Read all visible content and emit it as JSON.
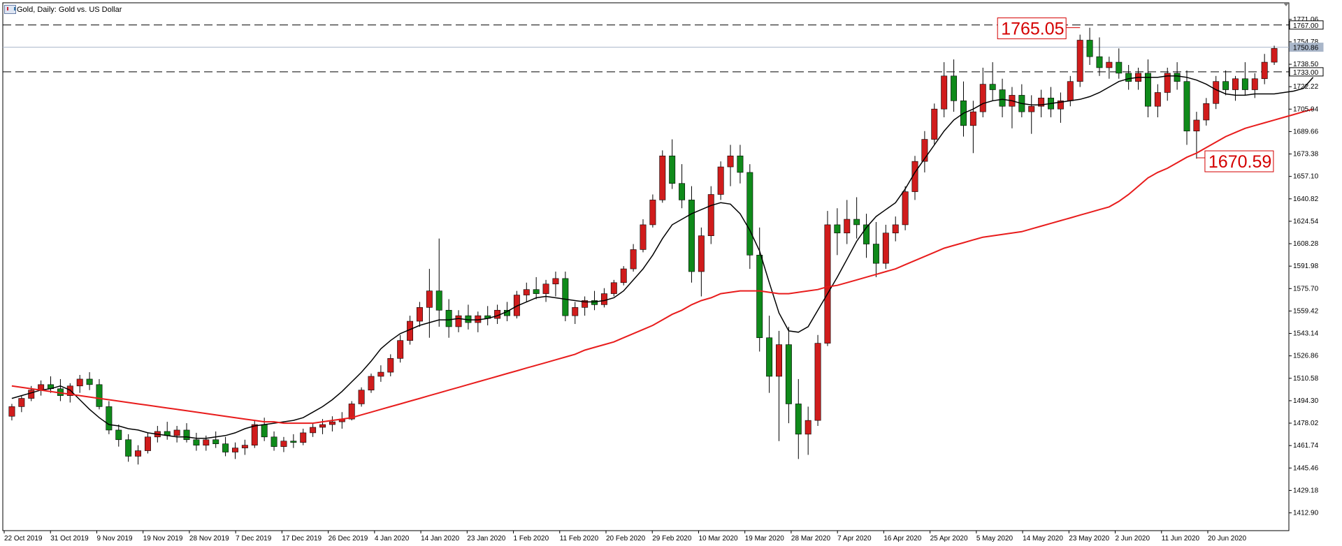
{
  "header": {
    "title": "Gold, Daily:  Gold vs. US Dollar"
  },
  "colors": {
    "bull_candle": "#d01c1c",
    "bear_candle": "#0f8a1a",
    "ma_fast": "#000000",
    "ma_slow": "#e81c1c",
    "level_line": "#000000",
    "price_line": "#a9b6c9",
    "callout_text": "#d40000"
  },
  "chart_data": {
    "type": "candlestick",
    "timeframe": "Daily",
    "symbol": "Gold",
    "ylim": [
      1400.0,
      1775.0
    ],
    "y_ticks": [
      "1771.06",
      "1754.78",
      "1738.50",
      "1722.22",
      "1705.94",
      "1689.66",
      "1673.38",
      "1657.10",
      "1640.82",
      "1624.54",
      "1608.28",
      "1591.98",
      "1575.70",
      "1559.42",
      "1543.14",
      "1526.86",
      "1510.58",
      "1494.30",
      "1478.02",
      "1461.74",
      "1445.46",
      "1429.18",
      "1412.90"
    ],
    "x_ticks": [
      "22 Oct 2019",
      "31 Oct 2019",
      "9 Nov 2019",
      "19 Nov 2019",
      "28 Nov 2019",
      "7 Dec 2019",
      "17 Dec 2019",
      "26 Dec 2019",
      "4 Jan 2020",
      "14 Jan 2020",
      "23 Jan 2020",
      "1 Feb 2020",
      "11 Feb 2020",
      "20 Feb 2020",
      "29 Feb 2020",
      "10 Mar 2020",
      "19 Mar 2020",
      "28 Mar 2020",
      "7 Apr 2020",
      "16 Apr 2020",
      "25 Apr 2020",
      "5 May 2020",
      "14 May 2020",
      "23 May 2020",
      "2 Jun 2020",
      "11 Jun 2020",
      "20 Jun 2020"
    ],
    "levels": [
      {
        "price": 1767.0,
        "label": "1767.00",
        "style": "dashed"
      },
      {
        "price": 1733.0,
        "label": "1733.00",
        "style": "dashed"
      },
      {
        "price": 1750.86,
        "label": "1750.86",
        "style": "solid"
      }
    ],
    "annotations": [
      {
        "text": "1765.05",
        "price": 1765.05
      },
      {
        "text": "1670.59",
        "price": 1670.59
      }
    ],
    "series": [
      {
        "name": "",
        "kind": "sma_fast",
        "values": [
          1496,
          1498,
          1500,
          1502,
          1503,
          1505,
          1502,
          1495,
          1488,
          1482,
          1477,
          1476,
          1474,
          1473,
          1471,
          1470,
          1469,
          1468,
          1468,
          1467,
          1467,
          1468,
          1469,
          1471,
          1474,
          1476,
          1477,
          1478,
          1479,
          1480,
          1482,
          1486,
          1490,
          1495,
          1501,
          1508,
          1515,
          1523,
          1532,
          1538,
          1543,
          1546,
          1549,
          1551,
          1553,
          1553,
          1554,
          1553,
          1553,
          1554,
          1556,
          1559,
          1563,
          1566,
          1569,
          1570,
          1569,
          1568,
          1567,
          1566,
          1566,
          1567,
          1569,
          1574,
          1582,
          1590,
          1600,
          1612,
          1622,
          1626,
          1630,
          1633,
          1636,
          1638,
          1637,
          1630,
          1618,
          1603,
          1580,
          1558,
          1545,
          1544,
          1548,
          1560,
          1572,
          1584,
          1597,
          1610,
          1620,
          1628,
          1633,
          1638,
          1648,
          1660,
          1670,
          1680,
          1690,
          1698,
          1703,
          1706,
          1710,
          1712,
          1713,
          1712,
          1710,
          1709,
          1709,
          1710,
          1711,
          1712,
          1713,
          1715,
          1718,
          1722,
          1726,
          1728,
          1729,
          1729,
          1729,
          1730,
          1730,
          1729,
          1727,
          1724,
          1720,
          1717,
          1716,
          1716,
          1717,
          1717,
          1717,
          1718,
          1719,
          1721,
          1729
        ]
      },
      {
        "name": "",
        "kind": "sma_slow",
        "values": [
          1505,
          1504,
          1503,
          1502,
          1501,
          1500,
          1499,
          1498,
          1497,
          1496,
          1495,
          1494,
          1493,
          1492,
          1491,
          1490,
          1489,
          1488,
          1487,
          1486,
          1485,
          1484,
          1483,
          1482,
          1481,
          1480,
          1479,
          1479,
          1478,
          1478,
          1478,
          1478,
          1479,
          1480,
          1481,
          1482,
          1484,
          1486,
          1488,
          1490,
          1492,
          1494,
          1496,
          1498,
          1500,
          1502,
          1504,
          1506,
          1508,
          1510,
          1512,
          1514,
          1516,
          1518,
          1520,
          1522,
          1524,
          1526,
          1528,
          1531,
          1533,
          1535,
          1537,
          1540,
          1543,
          1546,
          1549,
          1553,
          1557,
          1560,
          1564,
          1567,
          1569,
          1572,
          1573,
          1574,
          1574,
          1574,
          1573,
          1572,
          1572,
          1573,
          1574,
          1575,
          1577,
          1578,
          1580,
          1582,
          1584,
          1586,
          1588,
          1590,
          1593,
          1596,
          1599,
          1602,
          1605,
          1607,
          1609,
          1611,
          1613,
          1614,
          1615,
          1616,
          1617,
          1619,
          1621,
          1623,
          1625,
          1627,
          1629,
          1631,
          1633,
          1635,
          1639,
          1644,
          1650,
          1656,
          1660,
          1663,
          1667,
          1671,
          1674,
          1678,
          1682,
          1686,
          1689,
          1692,
          1694,
          1696,
          1698,
          1700,
          1702,
          1704,
          1706
        ]
      }
    ],
    "candles": [
      [
        1483,
        1492,
        1480,
        1490
      ],
      [
        1490,
        1498,
        1486,
        1496
      ],
      [
        1496,
        1505,
        1494,
        1502
      ],
      [
        1502,
        1509,
        1498,
        1506
      ],
      [
        1506,
        1512,
        1500,
        1503
      ],
      [
        1503,
        1510,
        1494,
        1498
      ],
      [
        1498,
        1507,
        1493,
        1505
      ],
      [
        1505,
        1513,
        1500,
        1510
      ],
      [
        1510,
        1515,
        1502,
        1506
      ],
      [
        1506,
        1510,
        1488,
        1490
      ],
      [
        1490,
        1494,
        1470,
        1473
      ],
      [
        1473,
        1477,
        1461,
        1466
      ],
      [
        1466,
        1470,
        1450,
        1454
      ],
      [
        1454,
        1462,
        1448,
        1458
      ],
      [
        1458,
        1471,
        1456,
        1468
      ],
      [
        1468,
        1476,
        1464,
        1472
      ],
      [
        1472,
        1479,
        1466,
        1469
      ],
      [
        1469,
        1476,
        1464,
        1473
      ],
      [
        1473,
        1478,
        1464,
        1466
      ],
      [
        1466,
        1471,
        1458,
        1462
      ],
      [
        1462,
        1469,
        1458,
        1466
      ],
      [
        1466,
        1472,
        1460,
        1463
      ],
      [
        1463,
        1468,
        1454,
        1457
      ],
      [
        1457,
        1464,
        1452,
        1460
      ],
      [
        1460,
        1466,
        1455,
        1462
      ],
      [
        1462,
        1480,
        1460,
        1477
      ],
      [
        1477,
        1482,
        1465,
        1468
      ],
      [
        1468,
        1472,
        1458,
        1461
      ],
      [
        1461,
        1468,
        1457,
        1465
      ],
      [
        1465,
        1470,
        1460,
        1464
      ],
      [
        1464,
        1474,
        1462,
        1471
      ],
      [
        1471,
        1478,
        1468,
        1475
      ],
      [
        1475,
        1481,
        1470,
        1477
      ],
      [
        1477,
        1483,
        1472,
        1479
      ],
      [
        1479,
        1486,
        1474,
        1481
      ],
      [
        1481,
        1494,
        1480,
        1492
      ],
      [
        1492,
        1504,
        1490,
        1502
      ],
      [
        1502,
        1514,
        1500,
        1512
      ],
      [
        1512,
        1520,
        1508,
        1515
      ],
      [
        1515,
        1528,
        1512,
        1525
      ],
      [
        1525,
        1542,
        1522,
        1538
      ],
      [
        1538,
        1556,
        1535,
        1552
      ],
      [
        1552,
        1566,
        1548,
        1562
      ],
      [
        1562,
        1590,
        1540,
        1574
      ],
      [
        1574,
        1612,
        1548,
        1560
      ],
      [
        1560,
        1568,
        1540,
        1548
      ],
      [
        1548,
        1560,
        1544,
        1556
      ],
      [
        1556,
        1564,
        1546,
        1551
      ],
      [
        1551,
        1559,
        1544,
        1556
      ],
      [
        1556,
        1563,
        1549,
        1554
      ],
      [
        1554,
        1564,
        1550,
        1560
      ],
      [
        1560,
        1566,
        1552,
        1556
      ],
      [
        1556,
        1574,
        1554,
        1571
      ],
      [
        1571,
        1580,
        1566,
        1575
      ],
      [
        1575,
        1584,
        1568,
        1572
      ],
      [
        1572,
        1582,
        1566,
        1579
      ],
      [
        1579,
        1588,
        1570,
        1583
      ],
      [
        1583,
        1588,
        1552,
        1556
      ],
      [
        1556,
        1566,
        1550,
        1562
      ],
      [
        1562,
        1570,
        1556,
        1567
      ],
      [
        1567,
        1574,
        1560,
        1564
      ],
      [
        1564,
        1576,
        1562,
        1572
      ],
      [
        1572,
        1582,
        1570,
        1580
      ],
      [
        1580,
        1592,
        1578,
        1590
      ],
      [
        1590,
        1608,
        1588,
        1604
      ],
      [
        1604,
        1626,
        1602,
        1622
      ],
      [
        1622,
        1644,
        1620,
        1640
      ],
      [
        1640,
        1676,
        1638,
        1672
      ],
      [
        1672,
        1684,
        1648,
        1652
      ],
      [
        1652,
        1666,
        1634,
        1640
      ],
      [
        1640,
        1650,
        1580,
        1588
      ],
      [
        1588,
        1620,
        1570,
        1614
      ],
      [
        1614,
        1650,
        1608,
        1644
      ],
      [
        1644,
        1668,
        1640,
        1664
      ],
      [
        1664,
        1680,
        1650,
        1672
      ],
      [
        1672,
        1680,
        1652,
        1660
      ],
      [
        1660,
        1666,
        1590,
        1600
      ],
      [
        1600,
        1620,
        1530,
        1540
      ],
      [
        1540,
        1556,
        1500,
        1512
      ],
      [
        1512,
        1545,
        1465,
        1535
      ],
      [
        1535,
        1548,
        1478,
        1492
      ],
      [
        1492,
        1510,
        1452,
        1470
      ],
      [
        1470,
        1490,
        1455,
        1480
      ],
      [
        1480,
        1542,
        1476,
        1536
      ],
      [
        1536,
        1632,
        1534,
        1622
      ],
      [
        1622,
        1634,
        1600,
        1616
      ],
      [
        1616,
        1640,
        1608,
        1626
      ],
      [
        1626,
        1642,
        1612,
        1622
      ],
      [
        1622,
        1630,
        1598,
        1608
      ],
      [
        1608,
        1624,
        1584,
        1594
      ],
      [
        1594,
        1622,
        1590,
        1616
      ],
      [
        1616,
        1628,
        1610,
        1622
      ],
      [
        1622,
        1650,
        1618,
        1646
      ],
      [
        1646,
        1672,
        1640,
        1668
      ],
      [
        1668,
        1690,
        1660,
        1684
      ],
      [
        1684,
        1710,
        1680,
        1706
      ],
      [
        1706,
        1740,
        1700,
        1730
      ],
      [
        1730,
        1742,
        1704,
        1712
      ],
      [
        1712,
        1726,
        1686,
        1694
      ],
      [
        1694,
        1712,
        1674,
        1704
      ],
      [
        1704,
        1736,
        1700,
        1724
      ],
      [
        1724,
        1740,
        1712,
        1720
      ],
      [
        1720,
        1728,
        1700,
        1708
      ],
      [
        1708,
        1722,
        1692,
        1716
      ],
      [
        1716,
        1724,
        1700,
        1704
      ],
      [
        1704,
        1716,
        1688,
        1708
      ],
      [
        1708,
        1720,
        1700,
        1714
      ],
      [
        1714,
        1722,
        1700,
        1706
      ],
      [
        1706,
        1718,
        1696,
        1712
      ],
      [
        1712,
        1730,
        1708,
        1726
      ],
      [
        1726,
        1760,
        1722,
        1756
      ],
      [
        1756,
        1765,
        1738,
        1744
      ],
      [
        1744,
        1758,
        1730,
        1736
      ],
      [
        1736,
        1744,
        1728,
        1740
      ],
      [
        1740,
        1750,
        1728,
        1732
      ],
      [
        1732,
        1738,
        1720,
        1726
      ],
      [
        1726,
        1736,
        1720,
        1732
      ],
      [
        1732,
        1742,
        1700,
        1708
      ],
      [
        1708,
        1724,
        1700,
        1718
      ],
      [
        1718,
        1736,
        1712,
        1732
      ],
      [
        1732,
        1740,
        1720,
        1726
      ],
      [
        1726,
        1734,
        1680,
        1690
      ],
      [
        1690,
        1704,
        1670,
        1698
      ],
      [
        1698,
        1714,
        1694,
        1710
      ],
      [
        1710,
        1730,
        1706,
        1726
      ],
      [
        1726,
        1734,
        1716,
        1720
      ],
      [
        1720,
        1730,
        1712,
        1728
      ],
      [
        1728,
        1740,
        1716,
        1720
      ],
      [
        1720,
        1732,
        1714,
        1728
      ],
      [
        1728,
        1746,
        1724,
        1740
      ],
      [
        1740,
        1752,
        1738,
        1750
      ]
    ]
  }
}
